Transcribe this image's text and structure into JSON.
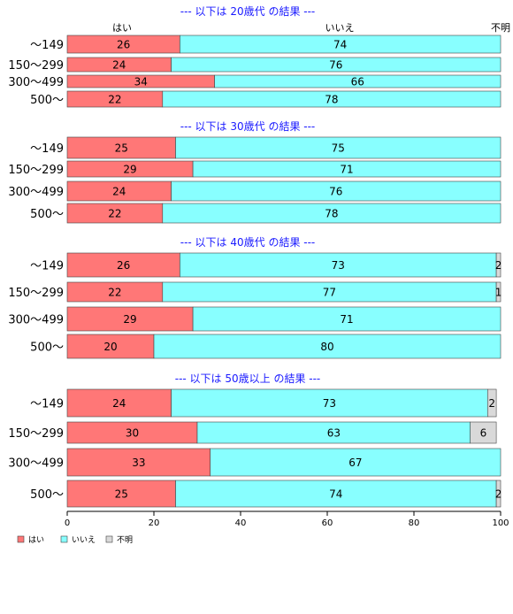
{
  "chart_data": {
    "type": "bar",
    "orientation": "horizontal",
    "stacked": true,
    "column_headers": [
      "はい",
      "いいえ",
      "不明"
    ],
    "xlim": [
      0,
      100
    ],
    "xticks": [
      "0",
      "20",
      "40",
      "60",
      "80",
      "100"
    ],
    "colors": {
      "はい": "#ff7777",
      "いいえ": "#88ffff",
      "不明": "#d9d9d9"
    },
    "legend": {
      "position": "bottom-left",
      "entries": [
        "はい",
        "いいえ",
        "不明"
      ]
    },
    "panels": [
      {
        "title": "--- 以下は 20歳代 の結果 ---",
        "rows": [
          {
            "category": "〜149",
            "values": [
              26,
              74,
              0
            ]
          },
          {
            "category": "150〜299",
            "values": [
              24,
              76,
              0
            ]
          },
          {
            "category": "300〜499",
            "values": [
              34,
              66,
              0
            ]
          },
          {
            "category": "500〜",
            "values": [
              22,
              78,
              0
            ]
          }
        ]
      },
      {
        "title": "--- 以下は 30歳代 の結果 ---",
        "rows": [
          {
            "category": "〜149",
            "values": [
              25,
              75,
              0
            ]
          },
          {
            "category": "150〜299",
            "values": [
              29,
              71,
              0
            ]
          },
          {
            "category": "300〜499",
            "values": [
              24,
              76,
              0
            ]
          },
          {
            "category": "500〜",
            "values": [
              22,
              78,
              0
            ]
          }
        ]
      },
      {
        "title": "--- 以下は 40歳代 の結果 ---",
        "rows": [
          {
            "category": "〜149",
            "values": [
              26,
              73,
              2
            ]
          },
          {
            "category": "150〜299",
            "values": [
              22,
              77,
              1
            ]
          },
          {
            "category": "300〜499",
            "values": [
              29,
              71,
              0
            ]
          },
          {
            "category": "500〜",
            "values": [
              20,
              80,
              0
            ]
          }
        ]
      },
      {
        "title": "--- 以下は 50歳以上 の結果 ---",
        "rows": [
          {
            "category": "〜149",
            "values": [
              24,
              73,
              2
            ]
          },
          {
            "category": "150〜299",
            "values": [
              30,
              63,
              6
            ]
          },
          {
            "category": "300〜499",
            "values": [
              33,
              67,
              0
            ]
          },
          {
            "category": "500〜",
            "values": [
              25,
              74,
              2
            ]
          }
        ]
      }
    ]
  }
}
